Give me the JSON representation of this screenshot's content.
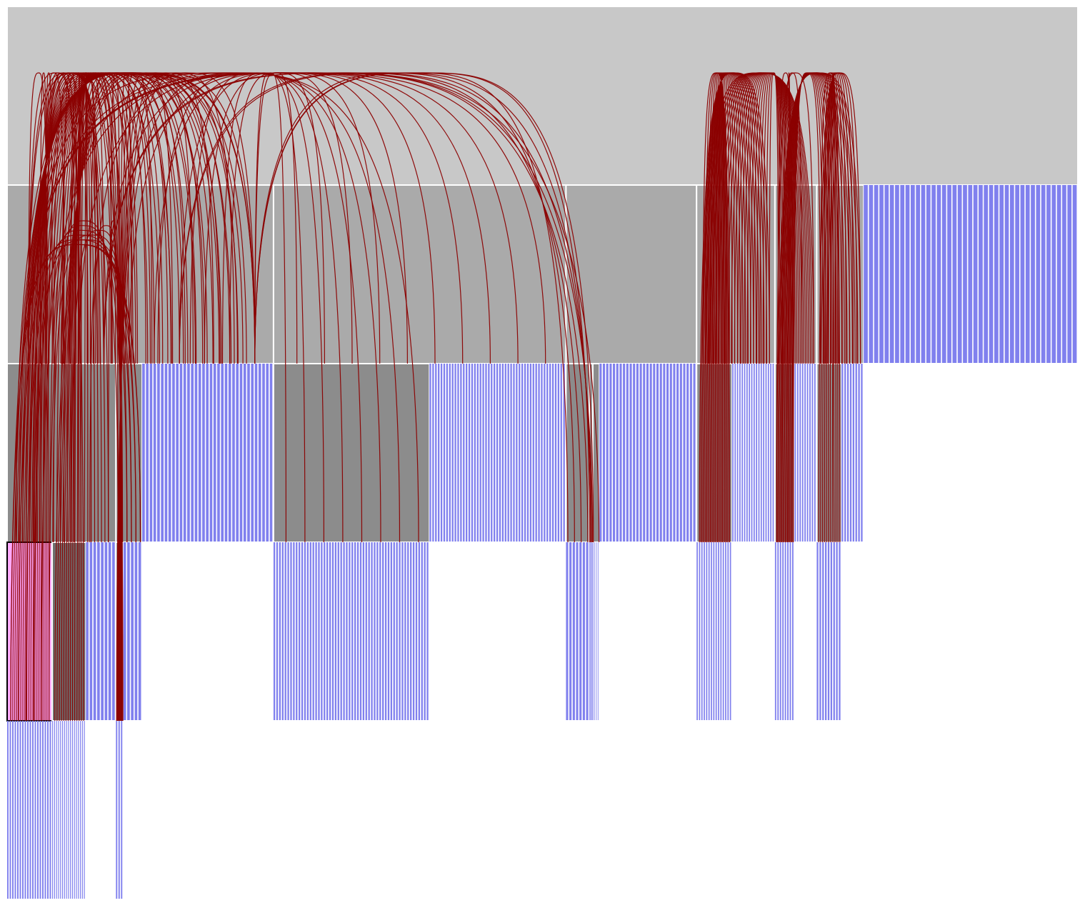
{
  "colors": {
    "background": "#ffffff",
    "level0": "#c8c8c8",
    "level1": "#aaaaaa",
    "level2": "#8c8c8c",
    "level3": "#6e6e6e",
    "leaf": "#8080ee",
    "highlight": "#ffaaff",
    "highlight_border": "#000000",
    "separator": "#ffffff",
    "edge": "#8b0000"
  },
  "hierarchy": {
    "leaves": 384,
    "children": [
      {
        "leaves": 51,
        "children": [
          {
            "leaves": 29,
            "children": [
              {
                "leaves": 12,
                "children": [
                  18
                ],
                "highlighted": true
              },
              {
                "leaves": 9,
                "children": [
                  3,
                  3,
                  4,
                  3,
                  4
                ]
              },
              8
            ]
          },
          {
            "leaves": 7,
            "children": [
              {
                "leaves": 2,
                "children": [
                  3
                ]
              },
              5
            ]
          },
          20,
          9,
          5,
          1
        ]
      },
      {
        "leaves": 56,
        "children": [
          {
            "leaves": 56,
            "children": [
              56
            ]
          },
          49
        ]
      },
      {
        "leaves": 25,
        "children": [
          {
            "leaves": 7,
            "children": [
              7
            ]
          },
          {
            "leaves": 1,
            "children": [
              4
            ]
          },
          {
            "leaves": 2,
            "children": [
              4
            ]
          },
          29
        ]
      },
      {
        "leaves": 15,
        "children": [
          {
            "leaves": 15,
            "children": [
              15
            ]
          },
          18
        ]
      },
      {
        "leaves": 8,
        "children": [
          {
            "leaves": 8,
            "children": [
              8
            ]
          },
          9
        ]
      },
      {
        "leaves": 9,
        "children": [
          {
            "leaves": 9,
            "children": [
              9
            ]
          },
          8
        ]
      },
      18,
      14,
      7,
      2
    ]
  },
  "edge_bundles": [
    {
      "from": 0,
      "to": 1,
      "count": 28
    },
    {
      "from": 0,
      "to": 2,
      "count": 20
    },
    {
      "from": 0,
      "to": 3,
      "count": 14
    },
    {
      "from": 0,
      "to": 5,
      "count": 12
    },
    {
      "from": 0,
      "to": 6,
      "count": 10
    },
    {
      "from": 0,
      "to": 7,
      "count": 8
    },
    {
      "from": 0,
      "to": 9,
      "count": 4
    },
    {
      "from": 0,
      "to": 10,
      "count": 4
    },
    {
      "from": 0,
      "to": 11,
      "count": 2
    },
    {
      "from": 4,
      "to": 1,
      "count": 6
    },
    {
      "from": 4,
      "to": 2,
      "count": 6
    },
    {
      "from": 12,
      "to": 13,
      "count": 26
    },
    {
      "from": 12,
      "to": 14,
      "count": 22
    },
    {
      "from": 14,
      "to": 15,
      "count": 4
    },
    {
      "from": 15,
      "to": 16,
      "count": 16
    },
    {
      "from": 16,
      "to": 17,
      "count": 12
    },
    {
      "from": 16,
      "to": 18,
      "count": 8
    }
  ]
}
